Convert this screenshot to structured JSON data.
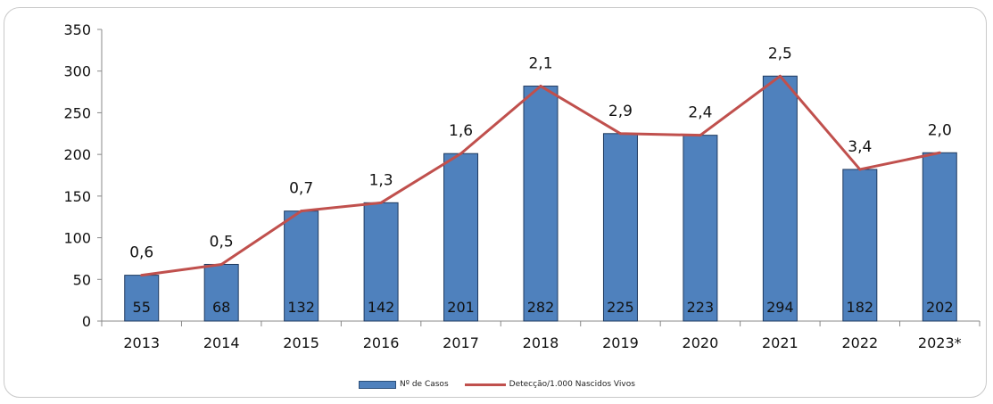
{
  "chart_data": {
    "type": "bar",
    "categories": [
      "2013",
      "2014",
      "2015",
      "2016",
      "2017",
      "2018",
      "2019",
      "2020",
      "2021",
      "2022",
      "2023*"
    ],
    "series": [
      {
        "name": "Nº de Casos",
        "type": "bar",
        "values": [
          55,
          68,
          132,
          142,
          201,
          282,
          225,
          223,
          294,
          182,
          202
        ],
        "labels": [
          "55",
          "68",
          "132",
          "142",
          "201",
          "282",
          "225",
          "223",
          "294",
          "182",
          "202"
        ]
      },
      {
        "name": "Detecção/1.000 Nascidos Vivos",
        "type": "line",
        "labels": [
          "0,6",
          "0,5",
          "0,7",
          "1,3",
          "1,6",
          "2,1",
          "2,9",
          "2,4",
          "2,5",
          "3,4",
          "2,0"
        ]
      }
    ],
    "ylim": [
      0,
      350
    ],
    "yticks": [
      "0",
      "50",
      "100",
      "150",
      "200",
      "250",
      "300",
      "350"
    ],
    "title": "",
    "xlabel": "",
    "ylabel": "",
    "grid": false,
    "legend": "bottom",
    "colors": {
      "bar": "#4f81bd",
      "bar_edge": "#1f3a5f",
      "line": "#c0504d"
    }
  }
}
